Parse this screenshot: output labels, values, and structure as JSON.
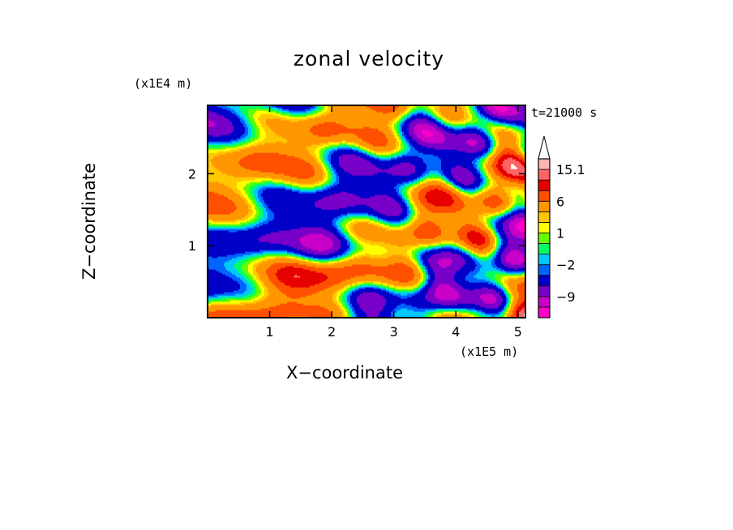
{
  "chart_data": {
    "type": "heatmap",
    "title": "zonal velocity",
    "xlabel": "X−coordinate",
    "ylabel": "Z−coordinate",
    "x_unit_label": "(x1E5 m)",
    "y_unit_label": "(x1E4 m)",
    "time_label": "t=21000 s",
    "xlim": [
      0,
      5.12
    ],
    "ylim": [
      0,
      2.95
    ],
    "x_ticks": [
      1,
      2,
      3,
      4,
      5
    ],
    "x_tick_labels": [
      "1",
      "2",
      "3",
      "4",
      "5"
    ],
    "y_ticks": [
      1,
      2
    ],
    "y_tick_labels": [
      "1",
      "2"
    ],
    "colorbar": {
      "levels": [
        -15,
        -12,
        -9,
        -6,
        -3,
        -2,
        -1,
        0,
        1,
        2,
        3,
        6,
        9,
        12,
        15.1
      ],
      "colors": [
        "#ff00c8",
        "#c800c8",
        "#7800c8",
        "#0000c8",
        "#0064ff",
        "#00c8ff",
        "#00ff64",
        "#64ff00",
        "#ffff00",
        "#ffc800",
        "#ff9600",
        "#ff5000",
        "#e60000",
        "#ff6464",
        "#ffb4b4",
        "#ffffff"
      ],
      "tick_labels": [
        "15.1",
        "6",
        "1",
        "−2",
        "−9"
      ],
      "tick_values": [
        15.1,
        6,
        1,
        -2,
        -9
      ],
      "extend": "max"
    }
  }
}
